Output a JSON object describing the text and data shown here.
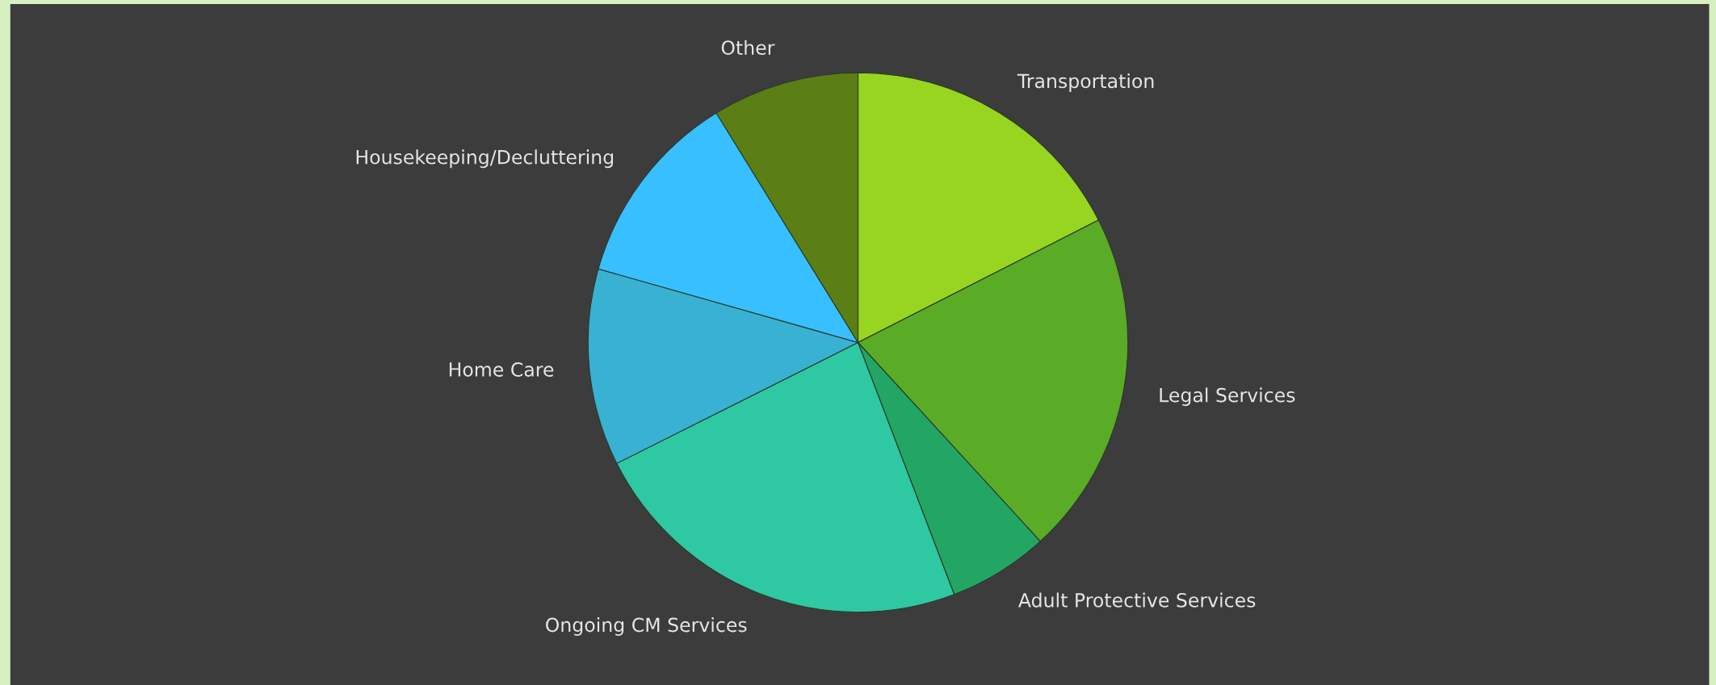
{
  "chart_data": {
    "type": "pie",
    "categories": [
      "Transportation",
      "Legal Services",
      "Adult Protective Services",
      "Ongoing CM Services",
      "Home Care",
      "Housekeeping/Decluttering",
      "Other"
    ],
    "values": [
      17.5,
      20.7,
      6.0,
      23.4,
      11.8,
      11.8,
      8.8
    ],
    "colors": [
      "#97d521",
      "#5aab26",
      "#23a663",
      "#2ec8a2",
      "#38b1d3",
      "#38bfff",
      "#5b7f14"
    ],
    "legend": false
  }
}
